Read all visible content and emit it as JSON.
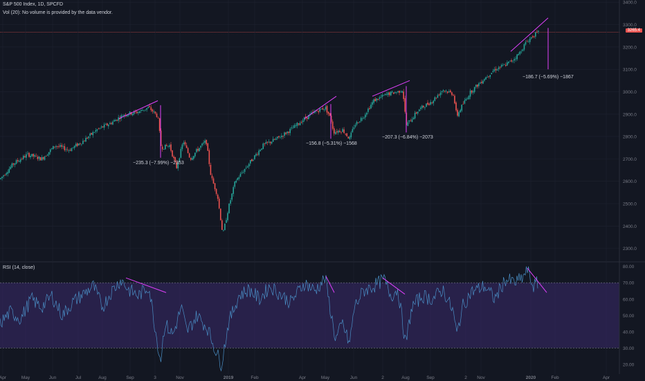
{
  "header": {
    "title": "S&P 500 Index, 1D, SPCFD",
    "volume_note": "Vol (20): No volume is provided by the data vendor."
  },
  "rsi": {
    "title": "RSI (14, close)",
    "axis_labels": [
      "80.00",
      "70.00",
      "60.00",
      "50.00",
      "40.00",
      "30.00",
      "20.00"
    ],
    "axis_values": [
      80,
      70,
      60,
      50,
      40,
      30,
      20
    ],
    "upper_band": 70,
    "lower_band": 30,
    "band_color": "#3b2a6b",
    "line_color": "#4a8fc6"
  },
  "price_axis": {
    "labels": [
      "3400.0",
      "3300.0",
      "3200.0",
      "3100.0",
      "3000.0",
      "2900.0",
      "2800.0",
      "2700.0",
      "2600.0",
      "2500.0",
      "2400.0",
      "2300.0"
    ],
    "values": [
      3400,
      3300,
      3200,
      3100,
      3000,
      2900,
      2800,
      2700,
      2600,
      2500,
      2400,
      2300
    ],
    "last_price_label": "3265.4",
    "last_price": 3265.4
  },
  "time_axis": {
    "labels": [
      "Apr",
      "May",
      "Jun",
      "Jul",
      "Aug",
      "Sep",
      "3",
      "Nov",
      "2019",
      "Feb",
      "Apr",
      "May",
      "Jun",
      "2",
      "Aug",
      "Sep",
      "2",
      "Nov",
      "2020",
      "Feb",
      "Apr"
    ]
  },
  "annotations": [
    {
      "text": "−235.3 (−7.99%) −2353"
    },
    {
      "text": "−156.8 (−5.31%) −1568"
    },
    {
      "text": "−207.3 (−6.84%) −2073"
    },
    {
      "text": "−186.7 (−5.69%) −1867"
    }
  ],
  "colors": {
    "up": "#26a69a",
    "down": "#ef5350",
    "divergence": "#e040fb",
    "background": "#131722",
    "grid": "#1e2230"
  },
  "chart_data": {
    "type": "candlestick",
    "title": "S&P 500 Index, 1D, SPCFD",
    "ylim": [
      2250,
      3400
    ],
    "price_path": [
      {
        "x": "Apr 2018",
        "y": 2610
      },
      {
        "x": "May 2018",
        "y": 2700
      },
      {
        "x": "Jun 2018",
        "y": 2730
      },
      {
        "x": "Jul 2018",
        "y": 2790
      },
      {
        "x": "Aug 2018",
        "y": 2860
      },
      {
        "x": "Sep 2018",
        "y": 2910
      },
      {
        "x": "Oct 3 2018",
        "y": 2930
      },
      {
        "x": "Oct 2018",
        "y": 2720
      },
      {
        "x": "Nov 2018",
        "y": 2700
      },
      {
        "x": "Dec 2018",
        "y": 2530
      },
      {
        "x": "Dec 24 2018",
        "y": 2350
      },
      {
        "x": "2019",
        "y": 2500
      },
      {
        "x": "Feb 2019",
        "y": 2720
      },
      {
        "x": "Mar 2019",
        "y": 2810
      },
      {
        "x": "Apr 2019",
        "y": 2900
      },
      {
        "x": "May 2019",
        "y": 2940
      },
      {
        "x": "May 2019 low",
        "y": 2770
      },
      {
        "x": "Jun 2019",
        "y": 2890
      },
      {
        "x": "Jul 2019",
        "y": 3010
      },
      {
        "x": "Aug 2019",
        "y": 2850
      },
      {
        "x": "Sep 2019",
        "y": 2980
      },
      {
        "x": "Oct 2019",
        "y": 2900
      },
      {
        "x": "Nov 2019",
        "y": 3100
      },
      {
        "x": "Dec 2019",
        "y": 3180
      },
      {
        "x": "2020",
        "y": 3265
      }
    ],
    "corrections": [
      {
        "label": "−235.3 (−7.99%) −2353",
        "change": -235.3,
        "percent": -7.99
      },
      {
        "label": "−156.8 (−5.31%) −1568",
        "change": -156.8,
        "percent": -5.31
      },
      {
        "label": "−207.3 (−6.84%) −2073",
        "change": -207.3,
        "percent": -6.84
      },
      {
        "label": "−186.7 (−5.69%) −1867",
        "change": -186.7,
        "percent": -5.69
      }
    ],
    "rsi_range": [
      15,
      82
    ],
    "rsi_bands": [
      30,
      70
    ]
  }
}
